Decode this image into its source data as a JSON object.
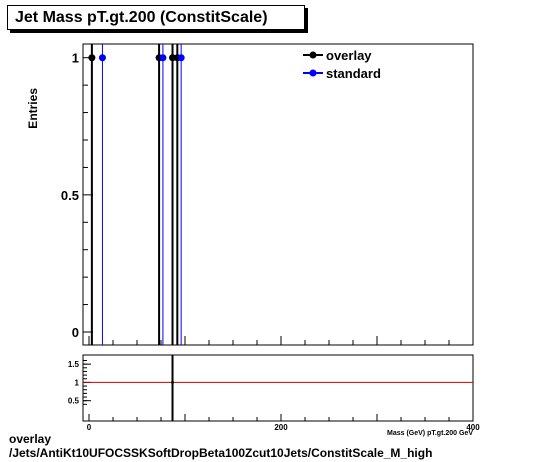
{
  "title": "Jet Mass pT.gt.200 (ConstitScale)",
  "footer": {
    "line1": "overlay",
    "line2": "/Jets/AntiKt10UFOCSSKSoftDropBeta100Zcut10Jets/ConstitScale_M_high"
  },
  "chart_data": [
    {
      "type": "scatter",
      "ylabel": "Entries",
      "xlim": [
        0,
        400
      ],
      "ylim": [
        0,
        1.05
      ],
      "y_ticks": [
        "0",
        "0.5",
        "1"
      ],
      "legend_placement": "top-right",
      "series": [
        {
          "name": "overlay",
          "color": "#000000",
          "points": [
            {
              "x": 3,
              "y": 1
            },
            {
              "x": 73,
              "y": 1
            },
            {
              "x": 87,
              "y": 1
            },
            {
              "x": 92,
              "y": 1
            }
          ]
        },
        {
          "name": "standard",
          "color": "#0000ff",
          "points": [
            {
              "x": 14,
              "y": 1
            },
            {
              "x": 77,
              "y": 1
            },
            {
              "x": 96,
              "y": 1
            }
          ]
        }
      ]
    },
    {
      "type": "line",
      "xlabel": "Mass (GeV) pT.gt.200 GeV",
      "xlim": [
        0,
        400
      ],
      "ylim": [
        0.3,
        1.75
      ],
      "y_ticks": [
        "0.5",
        "1",
        "1.5"
      ],
      "x_ticks": [
        "0",
        "200",
        "400"
      ],
      "reference_line": {
        "y": 1,
        "color": "#cc0000"
      },
      "points": [
        {
          "x": 87,
          "y": 1
        }
      ]
    }
  ]
}
